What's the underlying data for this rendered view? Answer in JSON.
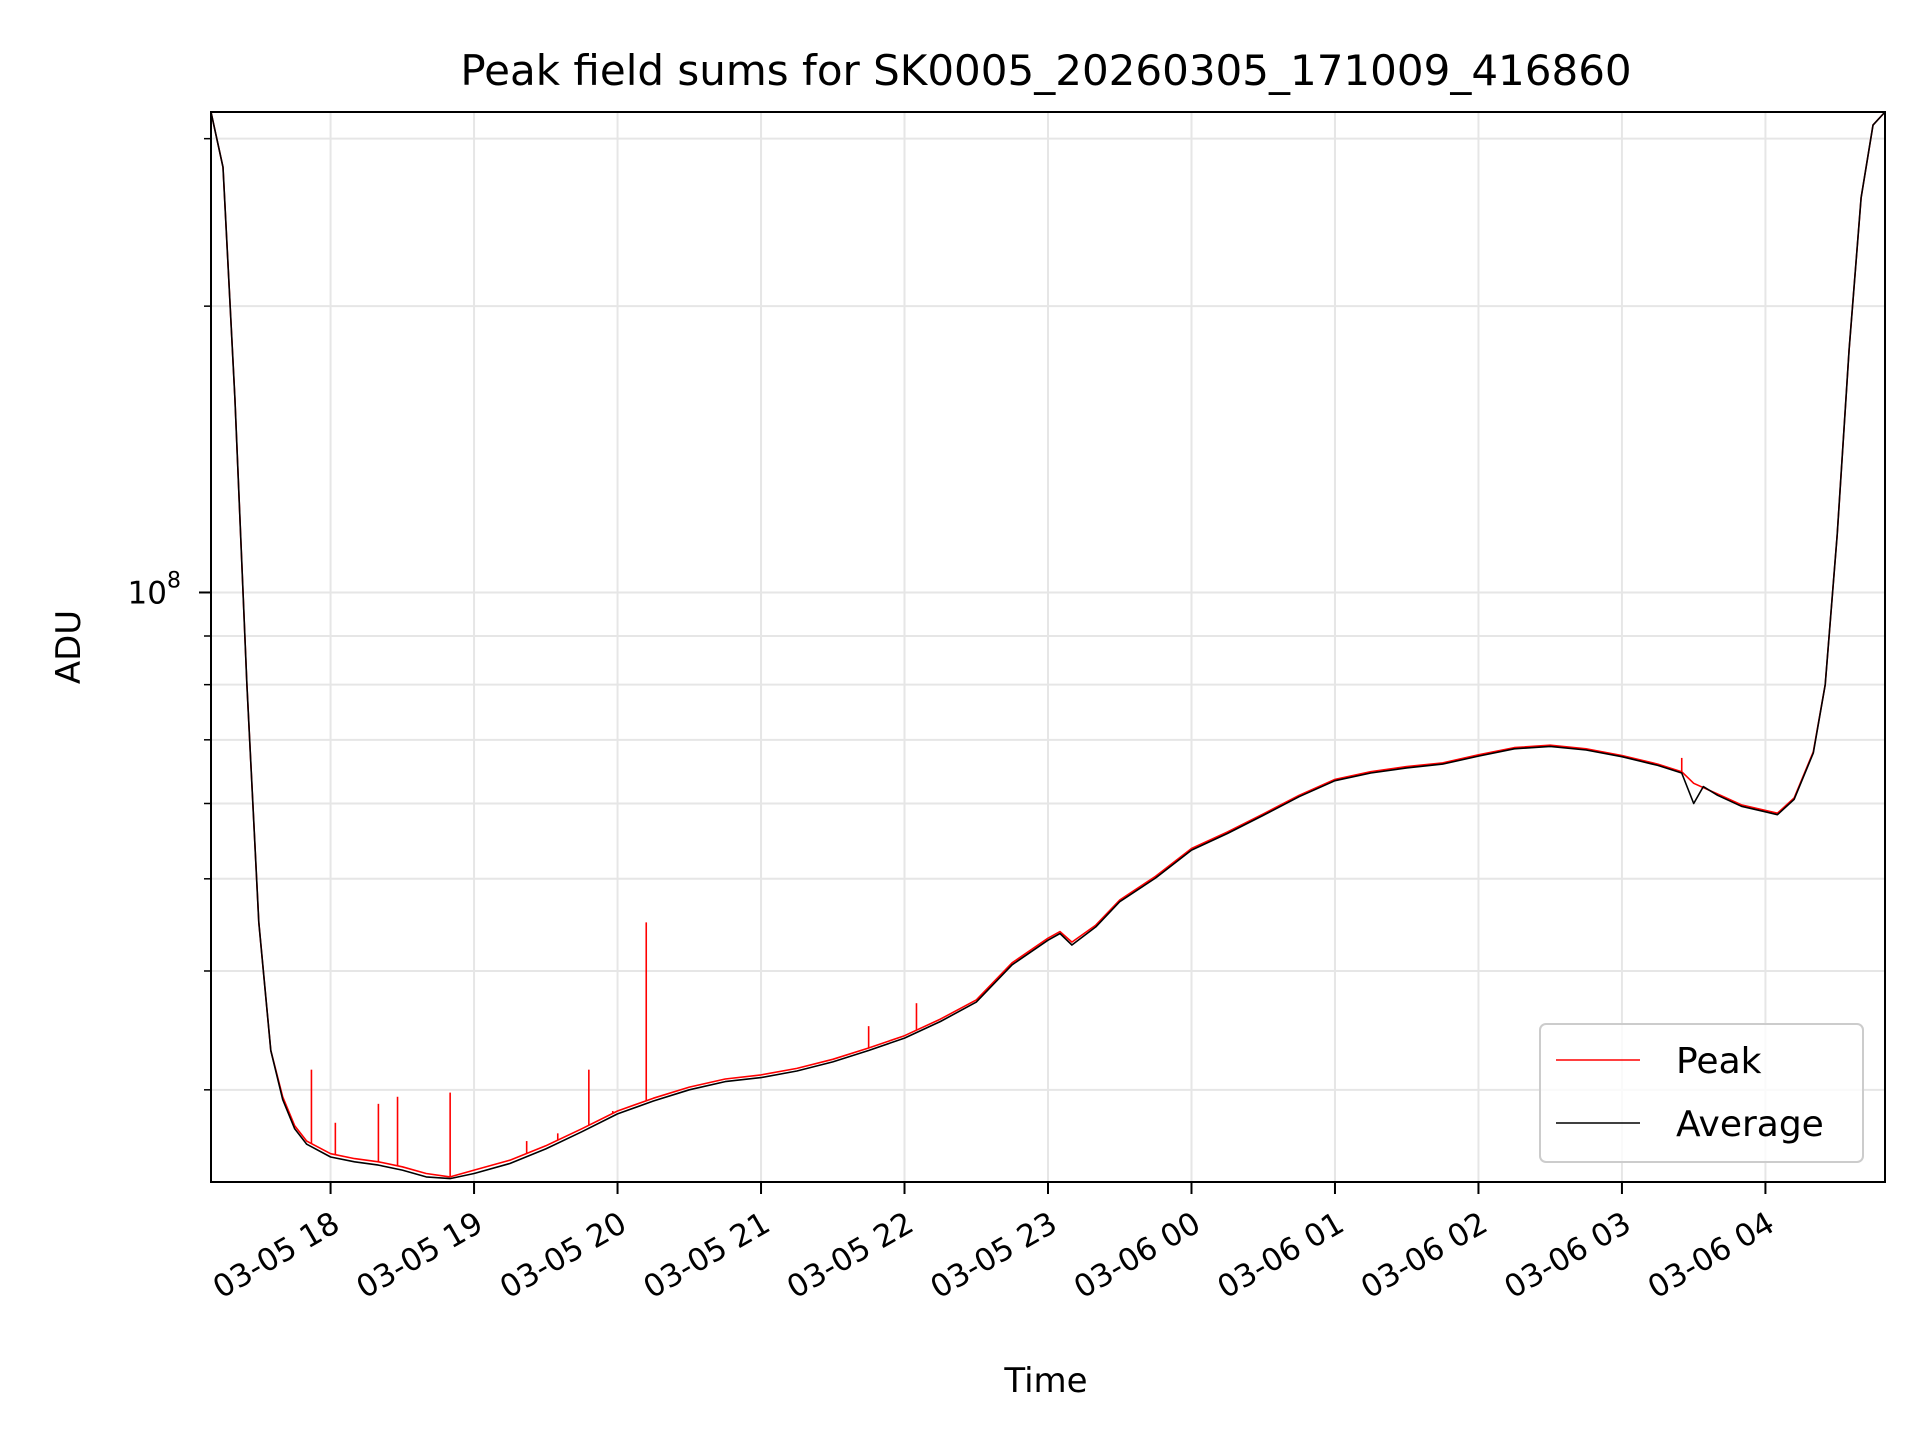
{
  "chart_data": {
    "type": "line",
    "title": "Peak field sums for SK0005_20260305_171009_416860",
    "xlabel": "Time",
    "ylabel": "ADU",
    "x_axis": {
      "type": "datetime",
      "range": [
        "2026-03-05T17:10",
        "2026-03-06T04:50"
      ],
      "ticks": [
        {
          "value": "2026-03-05T18:00",
          "label": "03-05 18"
        },
        {
          "value": "2026-03-05T19:00",
          "label": "03-05 19"
        },
        {
          "value": "2026-03-05T20:00",
          "label": "03-05 20"
        },
        {
          "value": "2026-03-05T21:00",
          "label": "03-05 21"
        },
        {
          "value": "2026-03-05T22:00",
          "label": "03-05 22"
        },
        {
          "value": "2026-03-05T23:00",
          "label": "03-05 23"
        },
        {
          "value": "2026-03-06T00:00",
          "label": "03-06 00"
        },
        {
          "value": "2026-03-06T01:00",
          "label": "03-06 01"
        },
        {
          "value": "2026-03-06T02:00",
          "label": "03-06 02"
        },
        {
          "value": "2026-03-06T03:00",
          "label": "03-06 03"
        },
        {
          "value": "2026-03-06T04:00",
          "label": "03-06 04"
        }
      ]
    },
    "y_axis": {
      "scale": "log",
      "range": [
        24000000,
        320000000
      ],
      "major_ticks": [
        {
          "value": 100000000,
          "label": "10",
          "exponent": "8"
        }
      ],
      "minor_ticks": [
        30000000,
        40000000,
        50000000,
        60000000,
        70000000,
        80000000,
        90000000,
        200000000,
        300000000
      ]
    },
    "grid": true,
    "legend": {
      "placement": "lower-right"
    },
    "series": [
      {
        "name": "Peak",
        "color": "#ff0000",
        "points": [
          [
            "2026-03-05T17:10",
            320000000
          ],
          [
            "2026-03-05T17:15",
            280000000
          ],
          [
            "2026-03-05T17:20",
            160000000
          ],
          [
            "2026-03-05T17:25",
            80000000
          ],
          [
            "2026-03-05T17:30",
            45000000
          ],
          [
            "2026-03-05T17:35",
            33000000
          ],
          [
            "2026-03-05T17:40",
            29500000
          ],
          [
            "2026-03-05T17:45",
            27500000
          ],
          [
            "2026-03-05T17:50",
            26500000
          ],
          [
            "2026-03-05T18:00",
            25700000
          ],
          [
            "2026-03-05T18:10",
            25400000
          ],
          [
            "2026-03-05T18:20",
            25200000
          ],
          [
            "2026-03-05T18:30",
            24900000
          ],
          [
            "2026-03-05T18:40",
            24500000
          ],
          [
            "2026-03-05T18:50",
            24300000
          ],
          [
            "2026-03-05T19:00",
            24700000
          ],
          [
            "2026-03-05T19:15",
            25300000
          ],
          [
            "2026-03-05T19:30",
            26200000
          ],
          [
            "2026-03-05T19:45",
            27300000
          ],
          [
            "2026-03-05T20:00",
            28500000
          ],
          [
            "2026-03-05T20:15",
            29400000
          ],
          [
            "2026-03-05T20:30",
            30200000
          ],
          [
            "2026-03-05T20:45",
            30800000
          ],
          [
            "2026-03-05T21:00",
            31100000
          ],
          [
            "2026-03-05T21:15",
            31600000
          ],
          [
            "2026-03-05T21:30",
            32300000
          ],
          [
            "2026-03-05T21:45",
            33200000
          ],
          [
            "2026-03-05T22:00",
            34200000
          ],
          [
            "2026-03-05T22:15",
            35600000
          ],
          [
            "2026-03-05T22:30",
            37300000
          ],
          [
            "2026-03-05T22:45",
            40800000
          ],
          [
            "2026-03-05T23:00",
            43300000
          ],
          [
            "2026-03-05T23:05",
            44000000
          ],
          [
            "2026-03-05T23:10",
            42900000
          ],
          [
            "2026-03-05T23:20",
            44700000
          ],
          [
            "2026-03-05T23:30",
            47500000
          ],
          [
            "2026-03-05T23:45",
            50300000
          ],
          [
            "2026-03-06T00:00",
            53800000
          ],
          [
            "2026-03-06T00:15",
            56000000
          ],
          [
            "2026-03-06T00:30",
            58500000
          ],
          [
            "2026-03-06T00:45",
            61200000
          ],
          [
            "2026-03-06T01:00",
            63600000
          ],
          [
            "2026-03-06T01:15",
            64800000
          ],
          [
            "2026-03-06T01:30",
            65600000
          ],
          [
            "2026-03-06T01:45",
            66200000
          ],
          [
            "2026-03-06T02:00",
            67500000
          ],
          [
            "2026-03-06T02:15",
            68700000
          ],
          [
            "2026-03-06T02:30",
            69100000
          ],
          [
            "2026-03-06T02:45",
            68500000
          ],
          [
            "2026-03-06T03:00",
            67400000
          ],
          [
            "2026-03-06T03:15",
            66000000
          ],
          [
            "2026-03-06T03:25",
            64800000
          ],
          [
            "2026-03-06T03:30",
            63000000
          ],
          [
            "2026-03-06T03:40",
            61400000
          ],
          [
            "2026-03-06T03:50",
            59800000
          ],
          [
            "2026-03-06T04:00",
            59000000
          ],
          [
            "2026-03-06T04:05",
            58600000
          ],
          [
            "2026-03-06T04:12",
            60800000
          ],
          [
            "2026-03-06T04:20",
            68000000
          ],
          [
            "2026-03-06T04:25",
            80000000
          ],
          [
            "2026-03-06T04:30",
            115000000
          ],
          [
            "2026-03-06T04:35",
            180000000
          ],
          [
            "2026-03-06T04:40",
            260000000
          ],
          [
            "2026-03-06T04:45",
            310000000
          ],
          [
            "2026-03-06T04:50",
            320000000
          ]
        ],
        "spikes": [
          [
            "2026-03-05T17:52",
            31500000
          ],
          [
            "2026-03-05T18:02",
            27700000
          ],
          [
            "2026-03-05T18:20",
            29000000
          ],
          [
            "2026-03-05T18:28",
            29500000
          ],
          [
            "2026-03-05T18:50",
            29800000
          ],
          [
            "2026-03-05T19:22",
            26500000
          ],
          [
            "2026-03-05T19:35",
            27000000
          ],
          [
            "2026-03-05T19:48",
            31500000
          ],
          [
            "2026-03-05T19:58",
            28500000
          ],
          [
            "2026-03-05T20:12",
            45000000
          ],
          [
            "2026-03-05T21:45",
            35000000
          ],
          [
            "2026-03-05T22:05",
            37000000
          ],
          [
            "2026-03-06T03:25",
            67000000
          ]
        ]
      },
      {
        "name": "Average",
        "color": "#000000",
        "points": [
          [
            "2026-03-05T17:10",
            320000000
          ],
          [
            "2026-03-05T17:15",
            280000000
          ],
          [
            "2026-03-05T17:20",
            160000000
          ],
          [
            "2026-03-05T17:25",
            80000000
          ],
          [
            "2026-03-05T17:30",
            45000000
          ],
          [
            "2026-03-05T17:35",
            33000000
          ],
          [
            "2026-03-05T17:40",
            29300000
          ],
          [
            "2026-03-05T17:45",
            27300000
          ],
          [
            "2026-03-05T17:50",
            26300000
          ],
          [
            "2026-03-05T18:00",
            25500000
          ],
          [
            "2026-03-05T18:10",
            25200000
          ],
          [
            "2026-03-05T18:20",
            25000000
          ],
          [
            "2026-03-05T18:30",
            24700000
          ],
          [
            "2026-03-05T18:40",
            24300000
          ],
          [
            "2026-03-05T18:50",
            24200000
          ],
          [
            "2026-03-05T19:00",
            24500000
          ],
          [
            "2026-03-05T19:15",
            25100000
          ],
          [
            "2026-03-05T19:30",
            26000000
          ],
          [
            "2026-03-05T19:45",
            27100000
          ],
          [
            "2026-03-05T20:00",
            28300000
          ],
          [
            "2026-03-05T20:15",
            29200000
          ],
          [
            "2026-03-05T20:30",
            30000000
          ],
          [
            "2026-03-05T20:45",
            30600000
          ],
          [
            "2026-03-05T21:00",
            30900000
          ],
          [
            "2026-03-05T21:15",
            31400000
          ],
          [
            "2026-03-05T21:30",
            32100000
          ],
          [
            "2026-03-05T21:45",
            33000000
          ],
          [
            "2026-03-05T22:00",
            34000000
          ],
          [
            "2026-03-05T22:15",
            35400000
          ],
          [
            "2026-03-05T22:30",
            37100000
          ],
          [
            "2026-03-05T22:45",
            40600000
          ],
          [
            "2026-03-05T23:00",
            43100000
          ],
          [
            "2026-03-05T23:05",
            43800000
          ],
          [
            "2026-03-05T23:10",
            42600000
          ],
          [
            "2026-03-05T23:20",
            44500000
          ],
          [
            "2026-03-05T23:30",
            47300000
          ],
          [
            "2026-03-05T23:45",
            50100000
          ],
          [
            "2026-03-06T00:00",
            53600000
          ],
          [
            "2026-03-06T00:15",
            55800000
          ],
          [
            "2026-03-06T00:30",
            58300000
          ],
          [
            "2026-03-06T00:45",
            61000000
          ],
          [
            "2026-03-06T01:00",
            63400000
          ],
          [
            "2026-03-06T01:15",
            64600000
          ],
          [
            "2026-03-06T01:30",
            65400000
          ],
          [
            "2026-03-06T01:45",
            66000000
          ],
          [
            "2026-03-06T02:00",
            67300000
          ],
          [
            "2026-03-06T02:15",
            68500000
          ],
          [
            "2026-03-06T02:30",
            68900000
          ],
          [
            "2026-03-06T02:45",
            68300000
          ],
          [
            "2026-03-06T03:00",
            67200000
          ],
          [
            "2026-03-06T03:15",
            65800000
          ],
          [
            "2026-03-06T03:25",
            64600000
          ],
          [
            "2026-03-06T03:30",
            60000000
          ],
          [
            "2026-03-06T03:34",
            62500000
          ],
          [
            "2026-03-06T03:40",
            61200000
          ],
          [
            "2026-03-06T03:50",
            59600000
          ],
          [
            "2026-03-06T04:00",
            58800000
          ],
          [
            "2026-03-06T04:05",
            58400000
          ],
          [
            "2026-03-06T04:12",
            60600000
          ],
          [
            "2026-03-06T04:20",
            67800000
          ],
          [
            "2026-03-06T04:25",
            80000000
          ],
          [
            "2026-03-06T04:30",
            115000000
          ],
          [
            "2026-03-06T04:35",
            180000000
          ],
          [
            "2026-03-06T04:40",
            260000000
          ],
          [
            "2026-03-06T04:45",
            310000000
          ],
          [
            "2026-03-06T04:50",
            320000000
          ]
        ]
      }
    ]
  }
}
